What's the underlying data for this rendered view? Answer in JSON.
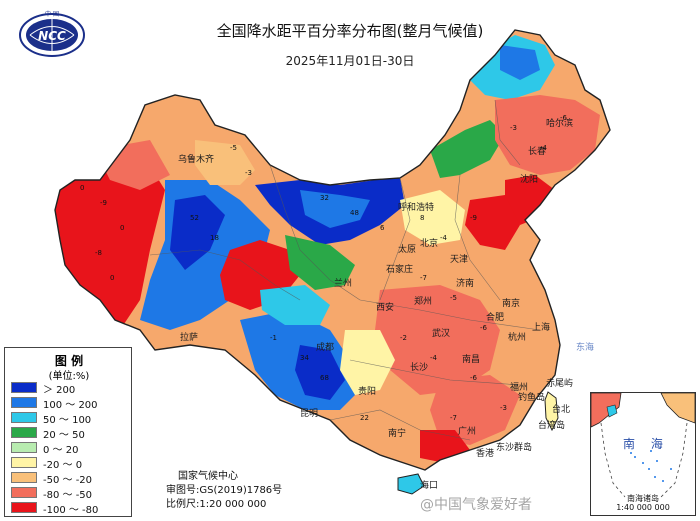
{
  "header": {
    "logo_text": "NCC",
    "logo_ring_text": "中 国",
    "title": "全国降水距平百分率分布图(整月气候值)",
    "subtitle": "2025年11月01日-30日"
  },
  "legend": {
    "title": "图 例",
    "unit": "(单位:%)",
    "items": [
      {
        "label": "＞ 200",
        "color": "#0a2cc8"
      },
      {
        "label": "100 ～ 200",
        "color": "#1e78e6"
      },
      {
        "label": "50 ～ 100",
        "color": "#2ec8e8"
      },
      {
        "label": "20 ～ 50",
        "color": "#2aa848"
      },
      {
        "label": "0 ～ 20",
        "color": "#b8ecb0"
      },
      {
        "label": "-20 ～ 0",
        "color": "#fff4a6"
      },
      {
        "label": "-50 ～ -20",
        "color": "#f9c07a"
      },
      {
        "label": "-80 ～ -50",
        "color": "#f26e5c"
      },
      {
        "label": "-100 ～ -80",
        "color": "#e8141b"
      }
    ]
  },
  "footer": {
    "agency": "国家气候中心",
    "approval": "审图号:GS(2019)1786号",
    "scale": "比例尺:1:20 000 000"
  },
  "inset": {
    "title": "南 海",
    "caption": "南海诸岛",
    "scale": "1:40 000 000"
  },
  "watermark": "@中国气象爱好者",
  "place_labels": {
    "beijing": "北京",
    "tianjin": "天津",
    "shijiazhuang": "石家庄",
    "jinan": "济南",
    "zhengzhou": "郑州",
    "wuhan": "武汉",
    "changsha": "长沙",
    "nanchang": "南昌",
    "hangzhou": "杭州",
    "shanghai": "上海",
    "fuzhou": "福州",
    "taipei": "台北",
    "guangzhou": "广州",
    "hongkong": "香港",
    "haikou": "海口",
    "kunming": "昆明",
    "lhasa": "拉萨",
    "urumqi": "乌鲁木齐",
    "lanzhou": "兰州",
    "xian": "西安",
    "chengdu": "成都",
    "guiyang": "贵阳",
    "nanning": "南宁",
    "hefei": "合肥",
    "nanjing": "南京",
    "taiyuan": "太原",
    "hohhot": "呼和浩特",
    "shenyang": "沈阳",
    "changchun": "长春",
    "harbin": "哈尔滨",
    "east_sea": "东海",
    "taiwan_island": "台湾岛",
    "dongsha": "东沙群岛",
    "chiwei": "赤尾屿",
    "diaoyu": "钓鱼岛"
  }
}
